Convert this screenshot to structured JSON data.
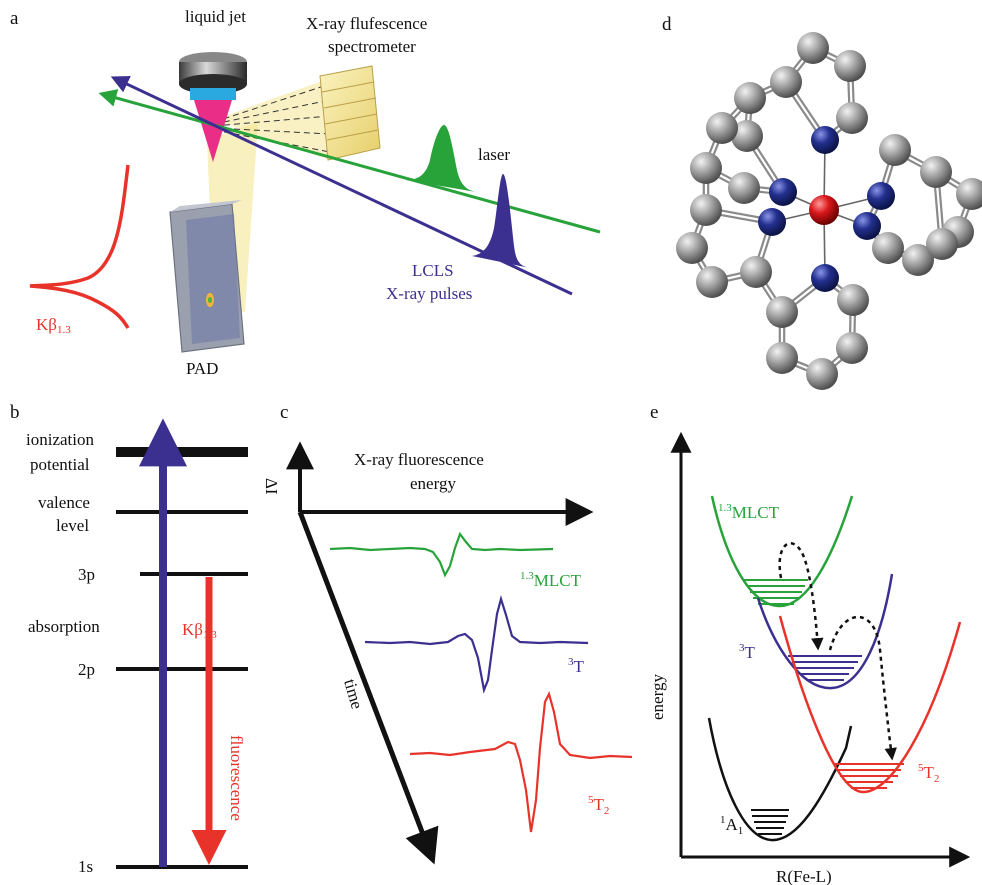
{
  "panels": {
    "a": {
      "label": "a",
      "liquid_jet": "liquid jet",
      "spectrometer_line1": "X-ray flufescence",
      "spectrometer_line2": "spectrometer",
      "laser": "laser",
      "lcls_line1": "LCLS",
      "lcls_line2": "X-ray pulses",
      "kbeta": "Kβ",
      "kbeta_sub": "1.3",
      "pad": "PAD"
    },
    "b": {
      "label": "b",
      "ionization_line1": "ionization",
      "ionization_line2": "potential",
      "valence_line1": "valence",
      "valence_line2": "level",
      "level_3p": "3p",
      "absorption": "absorption",
      "level_2p": "2p",
      "level_1s": "1s",
      "kbeta": "Kβ",
      "kbeta_sub": "1.3",
      "fluorescence": "fluorescence"
    },
    "c": {
      "label": "c",
      "y_axis": "ΔI",
      "x_axis_line1": "X-ray fluorescence",
      "x_axis_line2": "energy",
      "time_axis": "time",
      "trace1_sup": "1.3",
      "trace1_main": "MLCT",
      "trace2_sup": "3",
      "trace2_main": "T",
      "trace3_sup": "5",
      "trace3_main": "T",
      "trace3_sub": "2"
    },
    "d": {
      "label": "d"
    },
    "e": {
      "label": "e",
      "y_axis": "energy",
      "x_axis": "R(Fe-L)",
      "mlct_sup": "1.3",
      "mlct_main": "MLCT",
      "t3_sup": "3",
      "t3_main": "T",
      "t5_sup": "5",
      "t5_main": "T",
      "t5_sub": "2",
      "a1_sup": "1",
      "a1_main": "A",
      "a1_sub": "1"
    }
  },
  "colors": {
    "red": "#e8332a",
    "green": "#27a33a",
    "blue": "#3b2f8f",
    "black": "#111111",
    "beam_yellow": "#f3e48a",
    "atom_gray": "#9a9a9a",
    "atom_blue": "#1f2a8c",
    "atom_red": "#d9171a"
  }
}
